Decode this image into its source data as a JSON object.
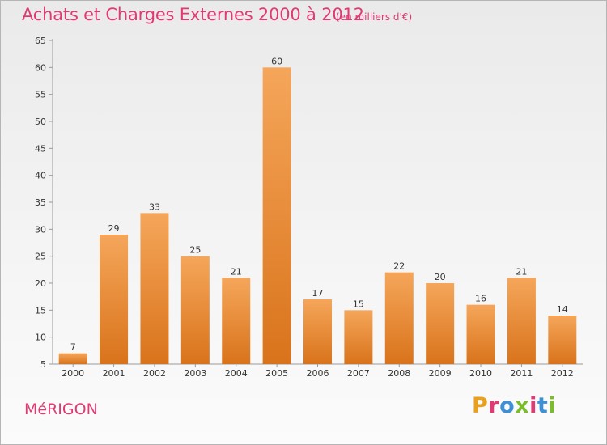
{
  "header": {
    "title": "Achats et Charges Externes 2000 à 2012",
    "subtitle": "(en milliers d'€)"
  },
  "footer": {
    "commune": "MéRIGON",
    "brand": "Proxiti",
    "brand_colors": [
      "#e8a020",
      "#e03a74",
      "#3d8fd6",
      "#7dbb2e",
      "#e03a74",
      "#3d8fd6",
      "#7dbb2e"
    ]
  },
  "colors": {
    "bar_top": "#f5a65a",
    "bar_bottom": "#d9731b",
    "accent": "#e03a74"
  },
  "chart_data": {
    "type": "bar",
    "title": "Achats et Charges Externes 2000 à 2012",
    "subtitle": "(en milliers d'€)",
    "categories": [
      "2000",
      "2001",
      "2002",
      "2003",
      "2004",
      "2005",
      "2006",
      "2007",
      "2008",
      "2009",
      "2010",
      "2011",
      "2012"
    ],
    "values": [
      7,
      29,
      33,
      25,
      21,
      60,
      17,
      15,
      22,
      20,
      16,
      21,
      14
    ],
    "ylim": [
      5,
      65
    ],
    "yticks": [
      5,
      10,
      15,
      20,
      25,
      30,
      35,
      40,
      45,
      50,
      55,
      60,
      65
    ],
    "xlabel": "",
    "ylabel": "",
    "grid": false,
    "legend": "none"
  }
}
